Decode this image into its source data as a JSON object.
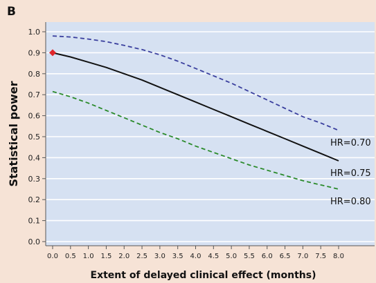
{
  "panel_label": "B",
  "colors": {
    "page_background": "#f6e3d6",
    "plot_background": "#d6e1f2",
    "gridline": "#ffffff",
    "axis": "#555555",
    "hr070": "#3a3f9e",
    "hr075": "#111111",
    "hr080": "#2a8a2a",
    "marker": "#e0262b"
  },
  "chart_data": {
    "type": "line",
    "title": "",
    "xlabel": "Extent of delayed clinical effect (months)",
    "ylabel": "Statistical power",
    "xlim": [
      0,
      8
    ],
    "ylim": [
      0,
      1
    ],
    "grid": "horizontal",
    "x_ticks": [
      "0.0",
      "0.5",
      "1.0",
      "1.5",
      "2.0",
      "2.5",
      "3.0",
      "3.5",
      "4.0",
      "4.5",
      "5.0",
      "5.5",
      "6.0",
      "6.5",
      "7.0",
      "7.5",
      "8.0"
    ],
    "y_ticks": [
      "0.0",
      "0.1",
      "0.2",
      "0.3",
      "0.4",
      "0.5",
      "0.6",
      "0.7",
      "0.8",
      "0.9",
      "1.0"
    ],
    "x": [
      0,
      0.5,
      1,
      1.5,
      2,
      2.5,
      3,
      3.5,
      4,
      4.5,
      5,
      5.5,
      6,
      6.5,
      7,
      7.5,
      8
    ],
    "series": [
      {
        "name": "HR=0.70",
        "style": "dashed",
        "color": "#3a3f9e",
        "values": [
          0.98,
          0.975,
          0.965,
          0.953,
          0.935,
          0.915,
          0.89,
          0.86,
          0.825,
          0.79,
          0.755,
          0.715,
          0.675,
          0.635,
          0.595,
          0.565,
          0.53
        ]
      },
      {
        "name": "HR=0.75",
        "style": "solid",
        "color": "#111111",
        "values": [
          0.9,
          0.88,
          0.855,
          0.83,
          0.8,
          0.77,
          0.735,
          0.7,
          0.665,
          0.63,
          0.595,
          0.56,
          0.525,
          0.49,
          0.455,
          0.42,
          0.385
        ]
      },
      {
        "name": "HR=0.80",
        "style": "dashed",
        "color": "#2a8a2a",
        "values": [
          0.715,
          0.69,
          0.66,
          0.625,
          0.59,
          0.555,
          0.52,
          0.49,
          0.455,
          0.425,
          0.395,
          0.365,
          0.34,
          0.315,
          0.29,
          0.27,
          0.25
        ]
      }
    ],
    "annotations": [
      {
        "text": "HR=0.70",
        "series": 0
      },
      {
        "text": "HR=0.75",
        "series": 1
      },
      {
        "text": "HR=0.80",
        "series": 2
      }
    ],
    "markers": [
      {
        "x": 0,
        "y": 0.9,
        "shape": "diamond",
        "color": "#e0262b"
      }
    ]
  }
}
